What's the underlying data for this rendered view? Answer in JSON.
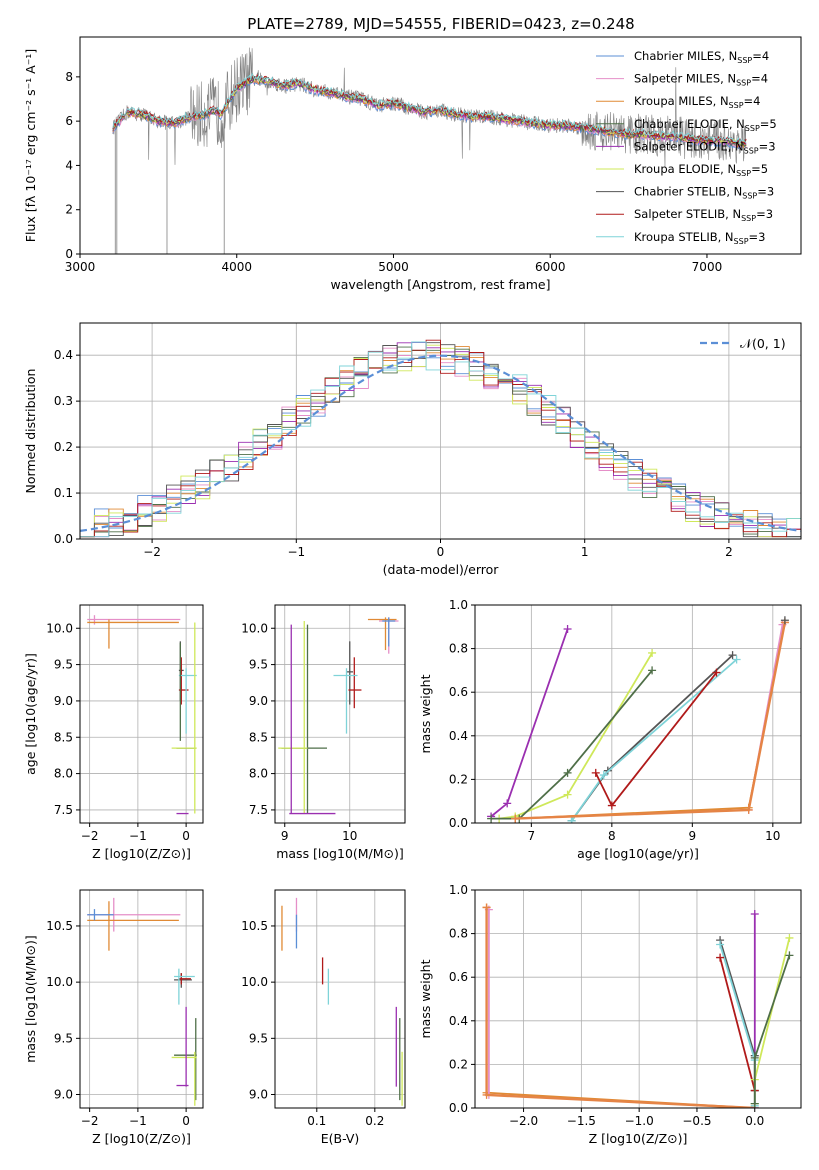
{
  "figure_title": "PLATE=2789, MJD=54555, FIBERID=0423, z=0.248",
  "colors": {
    "chabrier_miles": "#5b8fd6",
    "salpeter_miles": "#e58fc8",
    "kroupa_miles": "#e08a35",
    "chabrier_elodie": "#4f6f48",
    "salpeter_elodie": "#9a2fb0",
    "kroupa_elodie": "#cfe85a",
    "chabrier_stelib": "#555555",
    "salpeter_stelib": "#b01a1a",
    "kroupa_stelib": "#7fd3d8",
    "data": "#808080",
    "normal": "#5b8fd6",
    "model_orange": "#e58446"
  },
  "chart_data": [
    {
      "id": "spectrum",
      "type": "line",
      "title": "PLATE=2789, MJD=54555, FIBERID=0423, z=0.248",
      "xlabel": "wavelength [Angstrom, rest frame]",
      "ylabel": "Flux [fλ 10⁻¹⁷ erg cm⁻² s⁻¹ A⁻¹]",
      "xlim": [
        3000,
        7600
      ],
      "ylim": [
        0,
        9.8
      ],
      "xticks": [
        3000,
        4000,
        5000,
        6000,
        7000
      ],
      "yticks": [
        0,
        2,
        4,
        6,
        8
      ],
      "grid": false,
      "legend_position": "top-right",
      "legend": [
        {
          "label": "Chabrier MILES, N_SSP=4",
          "color_key": "chabrier_miles"
        },
        {
          "label": "Salpeter MILES, N_SSP=4",
          "color_key": "salpeter_miles"
        },
        {
          "label": "Kroupa MILES, N_SSP=4",
          "color_key": "kroupa_miles"
        },
        {
          "label": "Chabrier ELODIE, N_SSP=5",
          "color_key": "chabrier_elodie"
        },
        {
          "label": "Salpeter ELODIE, N_SSP=3",
          "color_key": "salpeter_elodie"
        },
        {
          "label": "Kroupa ELODIE, N_SSP=5",
          "color_key": "kroupa_elodie"
        },
        {
          "label": "Chabrier STELIB, N_SSP=3",
          "color_key": "chabrier_stelib"
        },
        {
          "label": "Salpeter STELIB, N_SSP=3",
          "color_key": "salpeter_stelib"
        },
        {
          "label": "Kroupa STELIB, N_SSP=3",
          "color_key": "kroupa_stelib"
        }
      ],
      "continuum": {
        "wavelength": [
          3210,
          3250,
          3300,
          3400,
          3500,
          3600,
          3700,
          3800,
          3850,
          3900,
          3950,
          4000,
          4100,
          4200,
          4300,
          4400,
          4500,
          4600,
          4700,
          4800,
          4900,
          5000,
          5100,
          5200,
          5300,
          5400,
          5500,
          5600,
          5700,
          5800,
          5900,
          6000,
          6100,
          6200,
          6300,
          6400,
          6500,
          6600,
          6700,
          6800,
          6900,
          7000,
          7100,
          7200,
          7250
        ],
        "flux": [
          5.7,
          6.0,
          6.4,
          6.3,
          6.0,
          5.9,
          6.2,
          6.3,
          6.5,
          6.3,
          6.9,
          7.5,
          7.9,
          7.8,
          7.6,
          7.7,
          7.4,
          7.3,
          7.1,
          7.0,
          6.7,
          6.8,
          6.6,
          6.4,
          6.5,
          6.3,
          6.2,
          6.2,
          6.1,
          6.0,
          5.9,
          5.8,
          5.8,
          5.7,
          5.6,
          5.5,
          5.4,
          5.4,
          5.3,
          5.3,
          5.2,
          5.1,
          5.1,
          5.0,
          5.0
        ]
      }
    },
    {
      "id": "residual_hist",
      "type": "line",
      "xlabel": "(data-model)/error",
      "ylabel": "Normed distribution",
      "xlim": [
        -2.5,
        2.5
      ],
      "ylim": [
        0,
        0.47
      ],
      "xticks": [
        -2,
        -1,
        0,
        1,
        2
      ],
      "yticks": [
        0.0,
        0.1,
        0.2,
        0.3,
        0.4
      ],
      "grid": true,
      "legend_position": "top-right",
      "legend": [
        {
          "label": "𝒩(0, 1)",
          "style": "dashed",
          "color_key": "normal"
        }
      ],
      "bin_width": 0.1,
      "x_start": -2.5
    },
    {
      "id": "age_vs_Z",
      "type": "scatter",
      "xlabel": "Z [log10(Z/Z⊙)]",
      "ylabel": "age  [log10(age/yr)]",
      "xlim": [
        -2.2,
        0.35
      ],
      "ylim": [
        7.32,
        10.32
      ],
      "xticks": [
        -2,
        -1,
        0
      ],
      "yticks": [
        7.5,
        8.0,
        8.5,
        9.0,
        9.5,
        10.0
      ],
      "grid": true,
      "points": [
        {
          "color_key": "salpeter_miles",
          "x": -1.9,
          "xlo": -2.05,
          "xhi": -0.12,
          "y": 10.12,
          "ylo": 10.05,
          "yhi": 10.18
        },
        {
          "color_key": "kroupa_miles",
          "x": -1.6,
          "xlo": -2.05,
          "xhi": -0.15,
          "y": 10.08,
          "ylo": 9.72,
          "yhi": 10.12
        },
        {
          "color_key": "chabrier_stelib",
          "x": -0.12,
          "xlo": -0.15,
          "xhi": -0.05,
          "y": 9.42,
          "ylo": 9.0,
          "yhi": 9.82
        },
        {
          "color_key": "salpeter_stelib",
          "x": -0.1,
          "xlo": -0.15,
          "xhi": 0.05,
          "y": 9.15,
          "ylo": 8.95,
          "yhi": 9.6
        },
        {
          "color_key": "kroupa_stelib",
          "x": 0.0,
          "xlo": -0.15,
          "xhi": 0.22,
          "y": 9.35,
          "ylo": 8.55,
          "yhi": 9.45
        },
        {
          "color_key": "chabrier_elodie",
          "x": -0.12,
          "xlo": -0.2,
          "xhi": 0.2,
          "y": 8.35,
          "ylo": 8.45,
          "yhi": 9.8
        },
        {
          "color_key": "kroupa_elodie",
          "x": 0.18,
          "xlo": -0.3,
          "xhi": 0.22,
          "y": 8.35,
          "ylo": 7.45,
          "yhi": 10.08
        },
        {
          "color_key": "salpeter_elodie",
          "x": 0.0,
          "xlo": -0.2,
          "xhi": 0.05,
          "y": 7.45,
          "ylo": 7.45,
          "yhi": 7.45
        }
      ]
    },
    {
      "id": "age_vs_mass",
      "type": "scatter",
      "xlabel": "mass [log10(M/M⊙)]",
      "ylabel": "",
      "xlim": [
        8.85,
        10.85
      ],
      "ylim": [
        7.32,
        10.32
      ],
      "xticks": [
        9,
        10
      ],
      "yticks": [
        7.5,
        8.0,
        8.5,
        9.0,
        9.5,
        10.0
      ],
      "grid": true,
      "points": [
        {
          "color_key": "salpeter_miles",
          "x": 10.6,
          "xlo": 10.45,
          "xhi": 10.75,
          "y": 10.1,
          "ylo": 9.65,
          "yhi": 10.15
        },
        {
          "color_key": "kroupa_miles",
          "x": 10.55,
          "xlo": 10.28,
          "xhi": 10.72,
          "y": 10.12,
          "ylo": 9.7,
          "yhi": 10.15
        },
        {
          "color_key": "chabrier_miles",
          "x": 10.6,
          "xlo": 10.5,
          "xhi": 10.7,
          "y": 10.1,
          "ylo": 9.75,
          "yhi": 10.15
        },
        {
          "color_key": "chabrier_stelib",
          "x": 10.0,
          "xlo": 9.95,
          "xhi": 10.05,
          "y": 9.4,
          "ylo": 8.95,
          "yhi": 9.82
        },
        {
          "color_key": "salpeter_stelib",
          "x": 10.07,
          "xlo": 9.98,
          "xhi": 10.18,
          "y": 9.15,
          "ylo": 8.9,
          "yhi": 9.6
        },
        {
          "color_key": "kroupa_stelib",
          "x": 9.95,
          "xlo": 9.75,
          "xhi": 10.12,
          "y": 9.35,
          "ylo": 8.55,
          "yhi": 9.45
        },
        {
          "color_key": "chabrier_elodie",
          "x": 9.35,
          "xlo": 8.95,
          "xhi": 9.65,
          "y": 8.35,
          "ylo": 7.45,
          "yhi": 10.05
        },
        {
          "color_key": "kroupa_elodie",
          "x": 9.3,
          "xlo": 8.9,
          "xhi": 9.35,
          "y": 8.35,
          "ylo": 7.45,
          "yhi": 10.1
        },
        {
          "color_key": "salpeter_elodie",
          "x": 9.1,
          "xlo": 9.07,
          "xhi": 9.78,
          "y": 7.45,
          "ylo": 7.45,
          "yhi": 10.05
        }
      ]
    },
    {
      "id": "massweight_vs_age",
      "type": "line",
      "xlabel": "age  [log10(age/yr)]",
      "ylabel": "mass weight",
      "xlim": [
        6.3,
        10.35
      ],
      "ylim": [
        0,
        1.0
      ],
      "xticks": [
        7,
        8,
        9,
        10
      ],
      "yticks": [
        0.0,
        0.2,
        0.4,
        0.6,
        0.8,
        1.0
      ],
      "grid": true,
      "series": [
        {
          "color_key": "salpeter_elodie",
          "x": [
            6.5,
            6.7,
            7.45
          ],
          "y": [
            0.03,
            0.09,
            0.89
          ]
        },
        {
          "color_key": "kroupa_elodie",
          "x": [
            6.6,
            6.8,
            7.45,
            8.5
          ],
          "y": [
            0.02,
            0.03,
            0.13,
            0.78
          ]
        },
        {
          "color_key": "chabrier_elodie",
          "x": [
            6.5,
            6.85,
            7.45,
            8.5
          ],
          "y": [
            0.02,
            0.02,
            0.23,
            0.7
          ]
        },
        {
          "color_key": "chabrier_stelib",
          "x": [
            7.5,
            7.95,
            9.5
          ],
          "y": [
            0.01,
            0.24,
            0.77
          ]
        },
        {
          "color_key": "kroupa_stelib",
          "x": [
            7.5,
            7.9,
            9.55
          ],
          "y": [
            0.01,
            0.22,
            0.75
          ]
        },
        {
          "color_key": "salpeter_stelib",
          "x": [
            7.8,
            8.0,
            9.3
          ],
          "y": [
            0.23,
            0.08,
            0.69
          ]
        },
        {
          "color_key": "salpeter_miles",
          "x": [
            6.8,
            9.7,
            10.12
          ],
          "y": [
            0.02,
            0.06,
            0.91
          ]
        },
        {
          "color_key": "kroupa_miles",
          "x": [
            6.8,
            9.7,
            10.15
          ],
          "y": [
            0.02,
            0.07,
            0.92
          ]
        },
        {
          "color_key": "model_orange",
          "x": [
            6.8,
            9.7,
            10.15
          ],
          "y": [
            0.02,
            0.06,
            0.92
          ]
        },
        {
          "color_key": "chabrier_stelib",
          "x": [
            10.15
          ],
          "y": [
            0.93
          ]
        }
      ]
    },
    {
      "id": "mass_vs_Z",
      "type": "scatter",
      "xlabel": "Z [log10(Z/Z⊙)]",
      "ylabel": "mass [log10(M/M⊙)]",
      "xlim": [
        -2.2,
        0.35
      ],
      "ylim": [
        8.88,
        10.82
      ],
      "xticks": [
        -2,
        -1,
        0
      ],
      "yticks": [
        9.0,
        9.5,
        10.0,
        10.5
      ],
      "grid": true,
      "points": [
        {
          "color_key": "salpeter_miles",
          "x": -1.5,
          "xlo": -2.05,
          "xhi": -0.12,
          "y": 10.6,
          "ylo": 10.45,
          "yhi": 10.75
        },
        {
          "color_key": "kroupa_miles",
          "x": -1.6,
          "xlo": -2.05,
          "xhi": -0.15,
          "y": 10.55,
          "ylo": 10.28,
          "yhi": 10.72
        },
        {
          "color_key": "chabrier_miles",
          "x": -1.9,
          "xlo": -2.05,
          "xhi": -1.5,
          "y": 10.6,
          "ylo": 10.55,
          "yhi": 10.65
        },
        {
          "color_key": "chabrier_stelib",
          "x": -0.1,
          "xlo": -0.25,
          "xhi": 0.12,
          "y": 10.02,
          "ylo": 9.95,
          "yhi": 10.08
        },
        {
          "color_key": "salpeter_stelib",
          "x": -0.1,
          "xlo": -0.15,
          "xhi": 0.1,
          "y": 10.03,
          "ylo": 9.98,
          "yhi": 10.08
        },
        {
          "color_key": "kroupa_stelib",
          "x": -0.15,
          "xlo": -0.25,
          "xhi": 0.18,
          "y": 10.05,
          "ylo": 9.8,
          "yhi": 10.12
        },
        {
          "color_key": "chabrier_elodie",
          "x": 0.2,
          "xlo": -0.25,
          "xhi": 0.22,
          "y": 9.35,
          "ylo": 8.95,
          "yhi": 9.68
        },
        {
          "color_key": "kroupa_elodie",
          "x": 0.18,
          "xlo": -0.3,
          "xhi": 0.22,
          "y": 9.33,
          "ylo": 8.9,
          "yhi": 9.38
        },
        {
          "color_key": "salpeter_elodie",
          "x": 0.0,
          "xlo": -0.2,
          "xhi": 0.05,
          "y": 9.08,
          "ylo": 9.07,
          "yhi": 9.78
        }
      ]
    },
    {
      "id": "mass_vs_ebv",
      "type": "scatter",
      "xlabel": "E(B-V)",
      "ylabel": "",
      "xlim": [
        0.028,
        0.252
      ],
      "ylim": [
        8.88,
        10.82
      ],
      "xticks": [
        0.1,
        0.2
      ],
      "yticks": [
        9.0,
        9.5,
        10.0,
        10.5
      ],
      "grid": true,
      "points": [
        {
          "color_key": "kroupa_miles",
          "x": 0.04,
          "y": 10.48,
          "ylo": 10.28,
          "yhi": 10.68
        },
        {
          "color_key": "salpeter_miles",
          "x": 0.065,
          "y": 10.58,
          "ylo": 10.45,
          "yhi": 10.75
        },
        {
          "color_key": "chabrier_miles",
          "x": 0.065,
          "y": 10.5,
          "ylo": 10.3,
          "yhi": 10.6
        },
        {
          "color_key": "salpeter_stelib",
          "x": 0.11,
          "y": 10.1,
          "ylo": 9.98,
          "yhi": 10.22
        },
        {
          "color_key": "kroupa_stelib",
          "x": 0.12,
          "y": 9.98,
          "ylo": 9.8,
          "yhi": 10.12
        },
        {
          "color_key": "salpeter_elodie",
          "x": 0.237,
          "y": 9.4,
          "ylo": 9.07,
          "yhi": 9.78
        },
        {
          "color_key": "chabrier_elodie",
          "x": 0.243,
          "y": 9.3,
          "ylo": 8.95,
          "yhi": 9.68
        },
        {
          "color_key": "kroupa_elodie",
          "x": 0.247,
          "y": 9.3,
          "ylo": 8.9,
          "yhi": 9.38
        }
      ]
    },
    {
      "id": "massweight_vs_Z",
      "type": "line",
      "xlabel": "Z [log10(Z/Z⊙)]",
      "ylabel": "mass weight",
      "xlim": [
        -2.42,
        0.4
      ],
      "ylim": [
        0,
        1.0
      ],
      "xticks": [
        -2.0,
        -1.5,
        -1.0,
        -0.5,
        0.0
      ],
      "yticks": [
        0.0,
        0.2,
        0.4,
        0.6,
        0.8,
        1.0
      ],
      "grid": true,
      "series": [
        {
          "color_key": "kroupa_miles",
          "x": [
            -2.32,
            -2.32,
            0.0
          ],
          "y": [
            0.92,
            0.07,
            0.0
          ]
        },
        {
          "color_key": "salpeter_miles",
          "x": [
            -2.3,
            -2.3,
            0.0
          ],
          "y": [
            0.91,
            0.06,
            0.0
          ]
        },
        {
          "color_key": "model_orange",
          "x": [
            -2.32,
            -2.32,
            0.0
          ],
          "y": [
            0.92,
            0.06,
            0.0
          ]
        },
        {
          "color_key": "salpeter_elodie",
          "x": [
            0.0,
            0.0
          ],
          "y": [
            0.89,
            0.0
          ]
        },
        {
          "color_key": "chabrier_stelib",
          "x": [
            -0.3,
            0.0,
            0.0
          ],
          "y": [
            0.77,
            0.24,
            0.08
          ]
        },
        {
          "color_key": "kroupa_stelib",
          "x": [
            -0.3,
            0.0,
            0.0
          ],
          "y": [
            0.75,
            0.22,
            0.01
          ]
        },
        {
          "color_key": "salpeter_stelib",
          "x": [
            -0.3,
            0.0
          ],
          "y": [
            0.69,
            0.08
          ]
        },
        {
          "color_key": "kroupa_elodie",
          "x": [
            0.3,
            0.0,
            0.0
          ],
          "y": [
            0.78,
            0.13,
            0.02
          ]
        },
        {
          "color_key": "chabrier_elodie",
          "x": [
            0.3,
            0.0,
            0.0
          ],
          "y": [
            0.7,
            0.23,
            0.02
          ]
        }
      ]
    }
  ]
}
